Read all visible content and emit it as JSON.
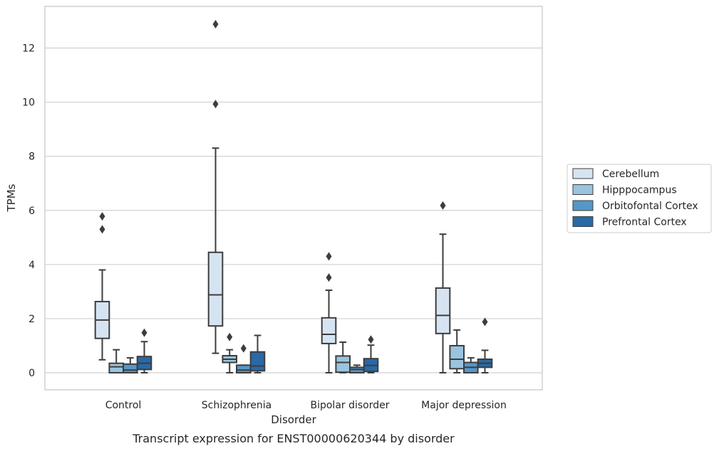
{
  "chart_data": {
    "type": "box",
    "caption": "Transcript expression for ENST00000620344 by disorder",
    "xlabel": "Disorder",
    "ylabel": "TPMs",
    "ylim": [
      -0.62,
      13.5
    ],
    "yticks": [
      0,
      2,
      4,
      6,
      8,
      10,
      12
    ],
    "grid": true,
    "legend_position": "right",
    "categories": [
      "Control",
      "Schizophrenia",
      "Bipolar disorder",
      "Major depression"
    ],
    "series": [
      {
        "name": "Cerebellum",
        "color": "#d6e4f2",
        "boxes": [
          {
            "whisker_low": 0.48,
            "q1": 1.27,
            "median": 1.95,
            "q3": 2.63,
            "whisker_high": 3.8,
            "outliers": [
              5.3,
              5.78
            ]
          },
          {
            "whisker_low": 0.72,
            "q1": 1.73,
            "median": 2.88,
            "q3": 4.45,
            "whisker_high": 8.3,
            "outliers": [
              9.93,
              12.88
            ]
          },
          {
            "whisker_low": 0.0,
            "q1": 1.08,
            "median": 1.42,
            "q3": 2.03,
            "whisker_high": 3.05,
            "outliers": [
              3.52,
              4.3
            ]
          },
          {
            "whisker_low": 0.0,
            "q1": 1.45,
            "median": 2.12,
            "q3": 3.13,
            "whisker_high": 5.12,
            "outliers": [
              6.18
            ]
          }
        ]
      },
      {
        "name": "Hipppocampus",
        "color": "#9ac4de",
        "boxes": [
          {
            "whisker_low": 0.0,
            "q1": 0.0,
            "median": 0.22,
            "q3": 0.35,
            "whisker_high": 0.85,
            "outliers": []
          },
          {
            "whisker_low": 0.0,
            "q1": 0.38,
            "median": 0.5,
            "q3": 0.63,
            "whisker_high": 0.85,
            "outliers": [
              1.32
            ]
          },
          {
            "whisker_low": 0.0,
            "q1": 0.02,
            "median": 0.38,
            "q3": 0.62,
            "whisker_high": 1.13,
            "outliers": []
          },
          {
            "whisker_low": 0.0,
            "q1": 0.15,
            "median": 0.5,
            "q3": 1.0,
            "whisker_high": 1.58,
            "outliers": []
          }
        ]
      },
      {
        "name": "Orbitofontal Cortex",
        "color": "#5597c8",
        "boxes": [
          {
            "whisker_low": 0.0,
            "q1": 0.0,
            "median": 0.1,
            "q3": 0.32,
            "whisker_high": 0.55,
            "outliers": []
          },
          {
            "whisker_low": 0.0,
            "q1": 0.0,
            "median": 0.1,
            "q3": 0.28,
            "whisker_high": 0.28,
            "outliers": [
              0.9
            ]
          },
          {
            "whisker_low": 0.0,
            "q1": 0.0,
            "median": 0.12,
            "q3": 0.2,
            "whisker_high": 0.28,
            "outliers": []
          },
          {
            "whisker_low": 0.0,
            "q1": 0.0,
            "median": 0.2,
            "q3": 0.38,
            "whisker_high": 0.55,
            "outliers": []
          }
        ]
      },
      {
        "name": "Prefrontal Cortex",
        "color": "#2869a6",
        "boxes": [
          {
            "whisker_low": 0.0,
            "q1": 0.12,
            "median": 0.35,
            "q3": 0.6,
            "whisker_high": 1.15,
            "outliers": [
              1.48
            ]
          },
          {
            "whisker_low": 0.0,
            "q1": 0.07,
            "median": 0.25,
            "q3": 0.77,
            "whisker_high": 1.38,
            "outliers": []
          },
          {
            "whisker_low": 0.0,
            "q1": 0.05,
            "median": 0.27,
            "q3": 0.52,
            "whisker_high": 1.02,
            "outliers": [
              1.23
            ]
          },
          {
            "whisker_low": 0.0,
            "q1": 0.2,
            "median": 0.35,
            "q3": 0.5,
            "whisker_high": 0.83,
            "outliers": [
              1.88
            ]
          }
        ]
      }
    ]
  }
}
